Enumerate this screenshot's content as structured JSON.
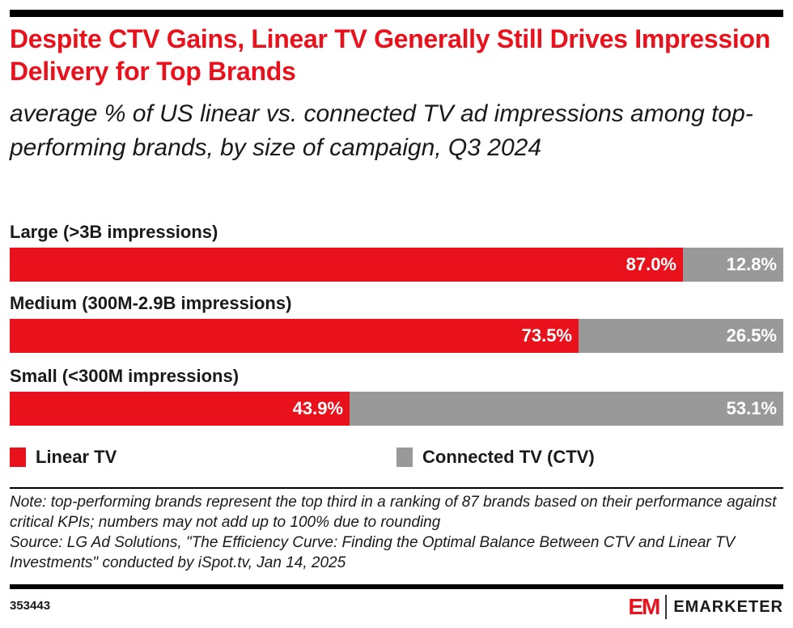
{
  "header": {
    "title": "Despite CTV Gains, Linear TV Generally Still Drives Impression Delivery for Top Brands",
    "subtitle": "average % of US linear vs. connected TV ad impressions among top-performing brands, by size of campaign, Q3 2024"
  },
  "chart_data": {
    "type": "bar",
    "stacked": true,
    "orientation": "horizontal",
    "title": "Despite CTV Gains, Linear TV Generally Still Drives Impression Delivery for Top Brands",
    "subtitle": "average % of US linear vs. connected TV ad impressions among top-performing brands, by size of campaign, Q3 2024",
    "categories": [
      "Large (>3B impressions)",
      "Medium (300M-2.9B impressions)",
      "Small (<300M impressions)"
    ],
    "series": [
      {
        "name": "Linear TV",
        "color": "#e8111c",
        "values": [
          87.0,
          73.5,
          43.9
        ],
        "labels": [
          "87.0%",
          "73.5%",
          "43.9%"
        ]
      },
      {
        "name": "Connected TV (CTV)",
        "color": "#999999",
        "values": [
          12.8,
          26.5,
          53.1
        ],
        "labels": [
          "12.8%",
          "26.5%",
          "53.1%"
        ]
      }
    ],
    "xlabel": "",
    "ylabel": "",
    "legend": "bottom",
    "grid": false
  },
  "footer": {
    "note": "Note: top-performing brands represent the top third in a ranking of 87 brands based on their performance against critical KPIs; numbers may not add up to 100% due to rounding",
    "source": "Source: LG Ad Solutions, \"The Efficiency Curve: Finding the Optimal Balance Between CTV and Linear TV Investments\" conducted by iSpot.tv, Jan 14, 2025",
    "chart_id": "353443",
    "logo_mark": "EM",
    "logo_text": "EMARKETER"
  }
}
